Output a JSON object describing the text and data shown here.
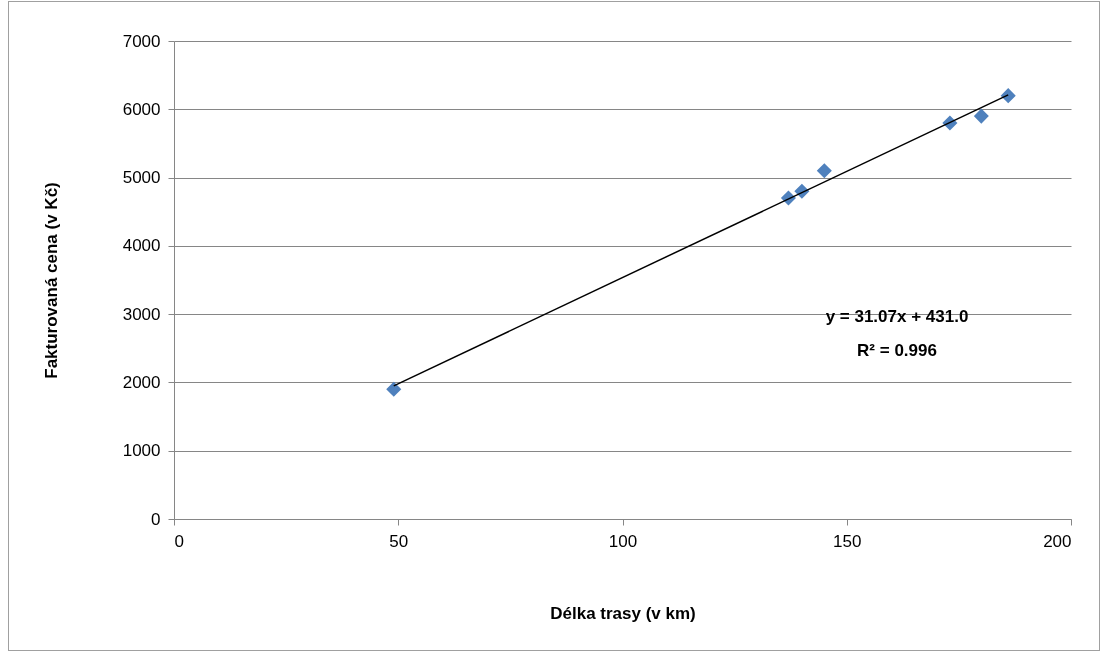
{
  "chart_data": {
    "type": "scatter",
    "xlabel": "Délka trasy (v km)",
    "ylabel": "Fakturovaná cena (v Kč)",
    "xlim": [
      0,
      200
    ],
    "xticks": [
      0,
      50,
      100,
      150,
      200
    ],
    "ylim": [
      0,
      7000
    ],
    "yticks": [
      0,
      1000,
      2000,
      3000,
      4000,
      5000,
      6000,
      7000
    ],
    "grid": "y",
    "legend": false,
    "marker": "diamond",
    "annotations": [
      "y = 31.07x + 431.0",
      "R² = 0.996"
    ],
    "series": [
      {
        "color": "#4f81bd",
        "x": [
          49,
          137,
          140,
          145,
          173,
          180,
          186
        ],
        "values": [
          1900,
          4700,
          4800,
          5100,
          5800,
          5900,
          6200
        ]
      },
      {
        "type": "line",
        "color": "#000000",
        "marker": "none",
        "x": [
          49,
          186
        ],
        "values": [
          1950,
          6210
        ]
      }
    ]
  }
}
